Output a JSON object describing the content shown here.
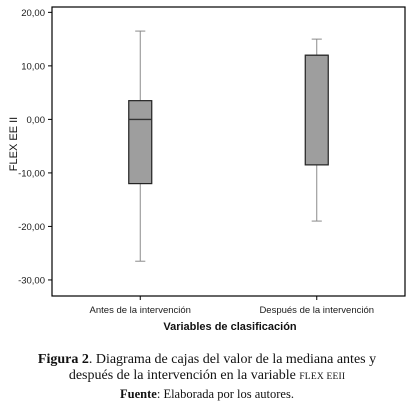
{
  "chart_data": {
    "type": "boxplot",
    "xlabel": "Variables de clasificación",
    "ylabel": "FLEX  EE II",
    "ylim": [
      -33,
      21
    ],
    "yticks": [
      "20,00",
      "10,00",
      "0,00",
      "-10,00",
      "-20,00",
      "-30,00"
    ],
    "ytick_values": [
      20,
      10,
      0,
      -10,
      -20,
      -30
    ],
    "box_color": "#9e9e9e",
    "categories": [
      "Antes de la intervención",
      "Después de la intervención"
    ],
    "boxes": [
      {
        "category": "Antes de la intervención",
        "whisker_low": -26.5,
        "q1": -12,
        "median": 0,
        "q3": 3.5,
        "whisker_high": 16.5
      },
      {
        "category": "Después de la intervención",
        "whisker_low": -19,
        "q1": -8.5,
        "median": 12,
        "q3": 12,
        "whisker_high": 15
      }
    ]
  },
  "caption": {
    "figure_label": "Figura 2",
    "line1": ". Diagrama de cajas del valor de la mediana antes y",
    "line2": "después de la intervención en la variable ",
    "line2_variable": "FLEX EEII",
    "source_label": "Fuente",
    "source_text": ": Elaborada por los autores."
  }
}
